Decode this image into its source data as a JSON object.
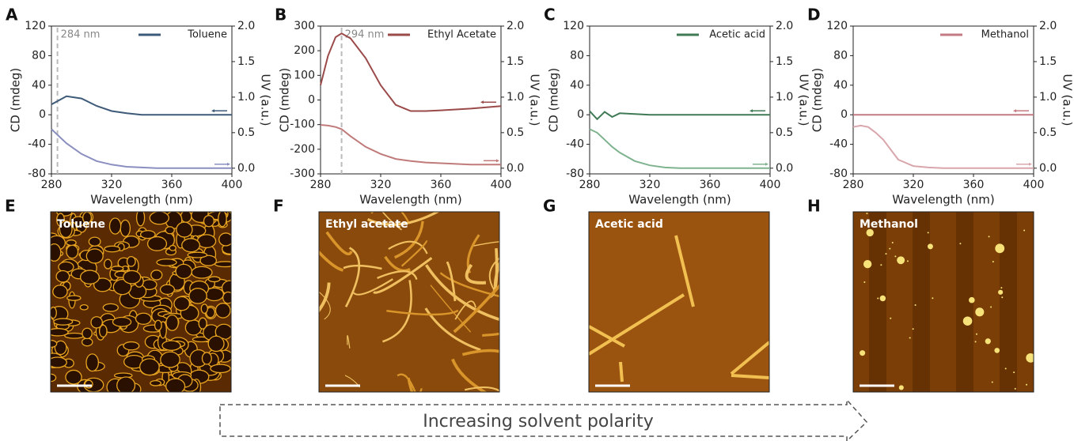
{
  "chart_data": [
    {
      "type": "line",
      "panel": "A",
      "x_label": "Wavelength (nm)",
      "y_label": "CD (mdeg)",
      "y2_label": "UV (a.u.)",
      "x": [
        280,
        290,
        300,
        310,
        320,
        330,
        340,
        350,
        360,
        370,
        380,
        390,
        400
      ],
      "series": [
        {
          "name": "Toluene",
          "color": "#3d5a78",
          "values": [
            14,
            25,
            22,
            12,
            5,
            2,
            0,
            0,
            0,
            0,
            0,
            0,
            0
          ]
        },
        {
          "color": "#8a8fc0",
          "axis": "y2",
          "values": [
            0.55,
            0.35,
            0.2,
            0.1,
            0.05,
            0.02,
            0.01,
            0,
            0,
            0,
            0,
            0,
            0
          ]
        }
      ],
      "annotation": {
        "x": 284,
        "text": "284 nm"
      },
      "xlim": [
        280,
        400
      ],
      "xticks": [
        280,
        320,
        360,
        400
      ],
      "ylim": [
        -80,
        120
      ],
      "yticks": [
        -80,
        -40,
        0,
        40,
        80,
        120
      ],
      "y2lim": [
        -0.08,
        2.0
      ],
      "y2ticks": [
        {
          "value": 0,
          "label": "0.0"
        },
        0.5,
        {
          "value": 1,
          "label": "1.0"
        },
        1.5,
        {
          "value": 2,
          "label": "2.0"
        }
      ],
      "legend": "upper right"
    },
    {
      "type": "line",
      "panel": "B",
      "x_label": "Wavelength (nm)",
      "y_label": "CD (mdeg)",
      "y2_label": "UV (a.u.)",
      "x": [
        280,
        285,
        290,
        294,
        300,
        310,
        320,
        330,
        340,
        350,
        360,
        380,
        400
      ],
      "series": [
        {
          "name": "Ethyl Acetate",
          "color": "#9b4a4a",
          "values": [
            60,
            180,
            255,
            270,
            250,
            170,
            60,
            -20,
            -45,
            -45,
            -42,
            -35,
            -25
          ]
        },
        {
          "color": "#c07a7a",
          "axis": "y2",
          "values": [
            0.61,
            0.6,
            0.58,
            0.55,
            0.45,
            0.3,
            0.2,
            0.13,
            0.1,
            0.08,
            0.07,
            0.05,
            0.05
          ]
        }
      ],
      "annotation": {
        "x": 294,
        "text": "294 nm"
      },
      "xlim": [
        280,
        400
      ],
      "xticks": [
        280,
        320,
        360,
        400
      ],
      "ylim": [
        -300,
        300
      ],
      "yticks": [
        -300,
        -200,
        -100,
        0,
        100,
        200,
        300
      ],
      "y2lim": [
        -0.08,
        2.0
      ],
      "y2ticks": [
        {
          "value": 0,
          "label": "0.0"
        },
        0.5,
        {
          "value": 1,
          "label": "1.0"
        },
        1.5,
        {
          "value": 2,
          "label": "2.0"
        }
      ],
      "legend": "upper right"
    },
    {
      "type": "line",
      "panel": "C",
      "x_label": "Wavelength (nm)",
      "y_label": "CD (mdeg)",
      "y2_label": "UV (a.u.)",
      "x": [
        280,
        285,
        290,
        295,
        300,
        310,
        320,
        330,
        340,
        350,
        360,
        380,
        400
      ],
      "series": [
        {
          "name": "Acetic acid",
          "color": "#3f7a55",
          "values": [
            5,
            -6,
            4,
            -3,
            2,
            1,
            0,
            0,
            0,
            0,
            0,
            0,
            0
          ]
        },
        {
          "color": "#7fb38f",
          "axis": "y2",
          "values": [
            0.55,
            0.5,
            0.4,
            0.3,
            0.22,
            0.1,
            0.04,
            0.01,
            0,
            0,
            0,
            0,
            0
          ]
        }
      ],
      "xlim": [
        280,
        400
      ],
      "xticks": [
        280,
        320,
        360,
        400
      ],
      "ylim": [
        -80,
        120
      ],
      "yticks": [
        -80,
        -40,
        0,
        40,
        80,
        120
      ],
      "y2lim": [
        -0.08,
        2.0
      ],
      "y2ticks": [
        {
          "value": 0,
          "label": "0.0"
        },
        0.5,
        {
          "value": 1,
          "label": "1.0"
        },
        1.5,
        {
          "value": 2,
          "label": "2.0"
        }
      ],
      "legend": "upper right"
    },
    {
      "type": "line",
      "panel": "D",
      "x_label": "Wavelength (nm)",
      "y_label": "CD (mdeg)",
      "y2_label": "UV (a.u.)",
      "x": [
        280,
        285,
        290,
        295,
        300,
        310,
        320,
        330,
        340,
        350,
        360,
        380,
        400
      ],
      "series": [
        {
          "name": "Methanol",
          "color": "#c47a82",
          "values": [
            0,
            0,
            0,
            0,
            0,
            0,
            0,
            0,
            0,
            0,
            0,
            0,
            0
          ]
        },
        {
          "color": "#d9a6ac",
          "axis": "y2",
          "values": [
            0.58,
            0.6,
            0.58,
            0.5,
            0.4,
            0.12,
            0.03,
            0.01,
            0,
            0,
            0,
            0,
            0
          ]
        }
      ],
      "xlim": [
        280,
        400
      ],
      "xticks": [
        280,
        320,
        360,
        400
      ],
      "ylim": [
        -80,
        120
      ],
      "yticks": [
        -80,
        -40,
        0,
        40,
        80,
        120
      ],
      "y2lim": [
        -0.08,
        2.0
      ],
      "y2ticks": [
        {
          "value": 0,
          "label": "0.0"
        },
        0.5,
        {
          "value": 1,
          "label": "1.0"
        },
        1.5,
        {
          "value": 2,
          "label": "2.0"
        }
      ],
      "legend": "upper right"
    }
  ],
  "images": [
    {
      "panel": "E",
      "label": "Toluene"
    },
    {
      "panel": "F",
      "label": "Ethyl acetate"
    },
    {
      "panel": "G",
      "label": "Acetic acid"
    },
    {
      "panel": "H",
      "label": "Methanol"
    }
  ],
  "arrow_label": "Increasing solvent polarity"
}
